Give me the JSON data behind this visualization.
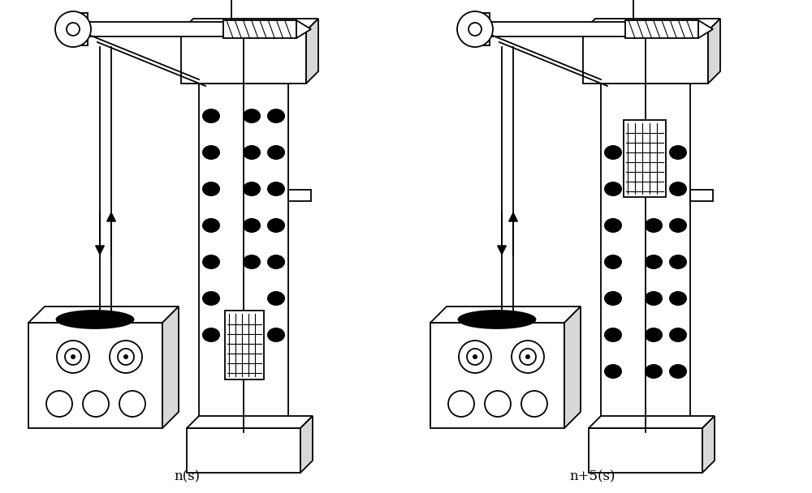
{
  "bg_color": "#ffffff",
  "label_left": "n(s)",
  "label_right": "n+5(s)",
  "label_fontsize": 12,
  "line_color": "#000000"
}
